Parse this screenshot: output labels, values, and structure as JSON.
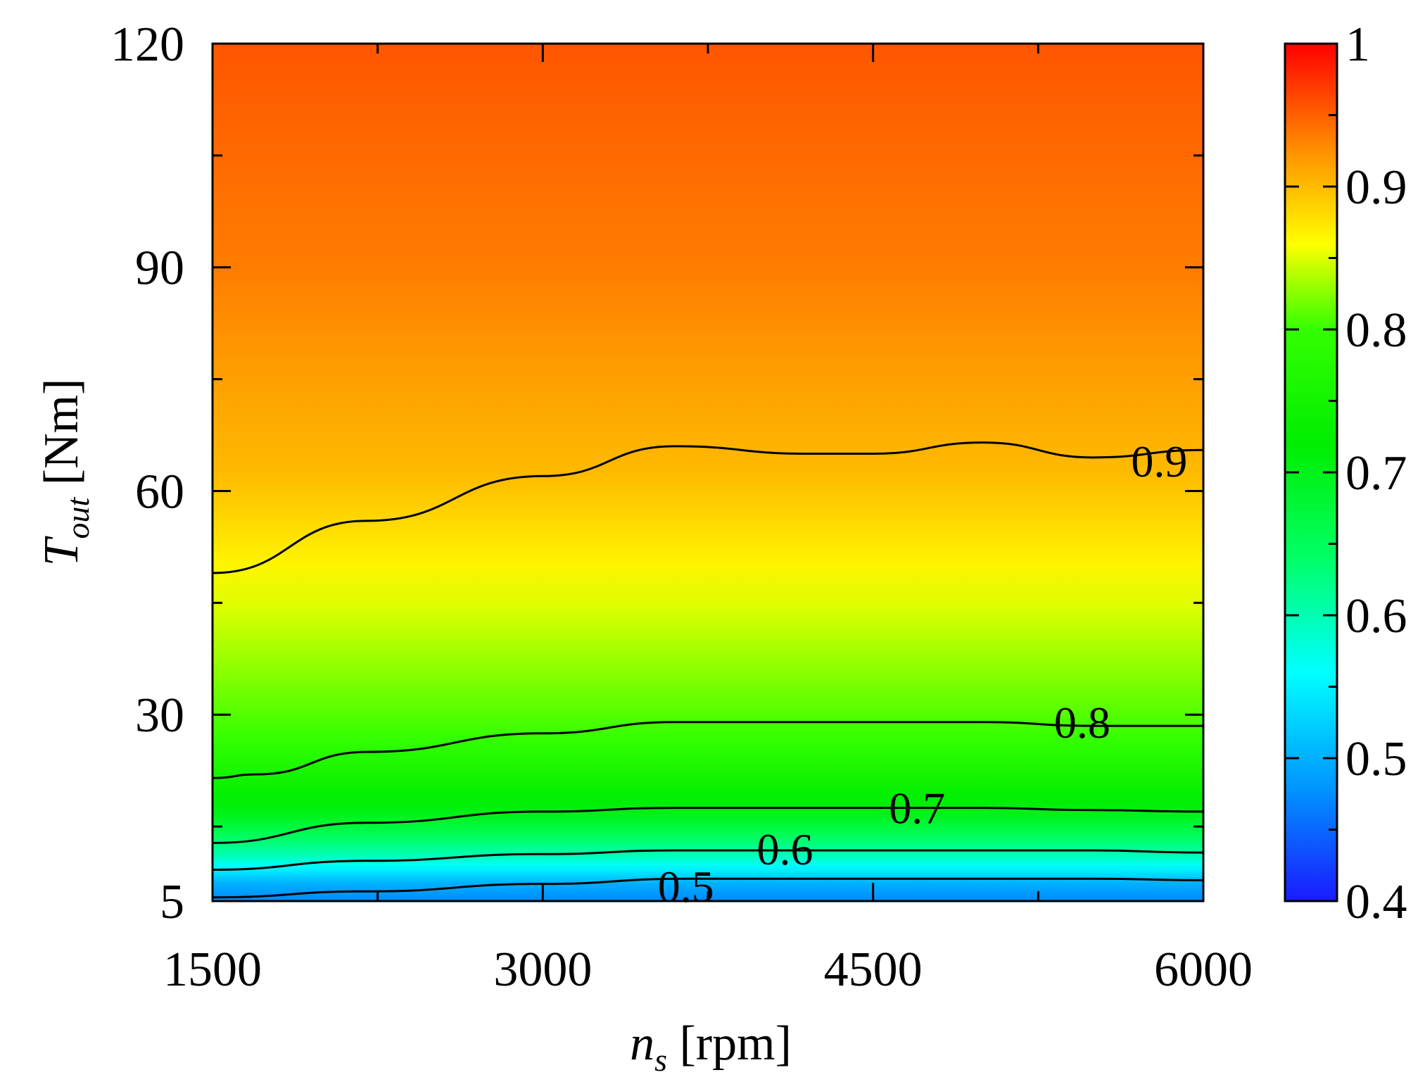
{
  "chart_data": {
    "type": "heatmap",
    "title": "",
    "x_axis": {
      "label_symbol": "n",
      "label_subscript": "s",
      "label_unit": " [rpm]",
      "range": [
        1500,
        6000
      ],
      "ticks": [
        1500,
        3000,
        4500,
        6000
      ],
      "tick_labels": [
        "1500",
        "3000",
        "4500",
        "6000"
      ],
      "minor_ticks": [
        2250,
        3750,
        5250
      ]
    },
    "y_axis": {
      "label_symbol": "T",
      "label_subscript": "out",
      "label_unit": " [Nm]",
      "range": [
        5,
        120
      ],
      "ticks": [
        5,
        30,
        60,
        90,
        120
      ],
      "tick_labels": [
        "5",
        "30",
        "60",
        "90",
        "120"
      ],
      "minor_ticks": [
        15,
        45,
        75,
        105
      ]
    },
    "colorbar": {
      "range": [
        0.4,
        1.0
      ],
      "ticks": [
        0.4,
        0.5,
        0.6,
        0.7,
        0.8,
        0.9,
        1.0
      ],
      "tick_labels": [
        "0.4",
        "0.5",
        "0.6",
        "0.7",
        "0.8",
        "0.9",
        "1"
      ],
      "minor_ticks": [
        0.45,
        0.55,
        0.65,
        0.75,
        0.85,
        0.95
      ],
      "colormap": [
        {
          "v": 0.4,
          "color": "#1a1aff"
        },
        {
          "v": 0.48,
          "color": "#0096ff"
        },
        {
          "v": 0.56,
          "color": "#00ffff"
        },
        {
          "v": 0.64,
          "color": "#00ff66"
        },
        {
          "v": 0.72,
          "color": "#00ee00"
        },
        {
          "v": 0.8,
          "color": "#33ff00"
        },
        {
          "v": 0.86,
          "color": "#ffff00"
        },
        {
          "v": 0.92,
          "color": "#ff9900"
        },
        {
          "v": 1.0,
          "color": "#ff0000"
        }
      ]
    },
    "contours": [
      {
        "level": 0.5,
        "label": "0.5",
        "label_at": [
          3650,
          7
        ],
        "points": [
          [
            1500,
            5.5
          ],
          [
            2200,
            6.3
          ],
          [
            3000,
            7.3
          ],
          [
            3650,
            8.0
          ],
          [
            4500,
            8.0
          ],
          [
            5000,
            8.0
          ],
          [
            5500,
            8.0
          ],
          [
            6000,
            7.8
          ]
        ]
      },
      {
        "level": 0.6,
        "label": "0.6",
        "label_at": [
          4100,
          12
        ],
        "points": [
          [
            1500,
            9.2
          ],
          [
            2200,
            10.4
          ],
          [
            3000,
            11.3
          ],
          [
            3600,
            11.8
          ],
          [
            4500,
            11.8
          ],
          [
            5000,
            11.8
          ],
          [
            5500,
            11.8
          ],
          [
            6000,
            11.5
          ]
        ]
      },
      {
        "level": 0.7,
        "label": "0.7",
        "label_at": [
          4700,
          17.5
        ],
        "points": [
          [
            1500,
            12.8
          ],
          [
            2200,
            15.5
          ],
          [
            3000,
            17.0
          ],
          [
            3600,
            17.5
          ],
          [
            4200,
            17.5
          ],
          [
            5000,
            17.5
          ],
          [
            5500,
            17.2
          ],
          [
            6000,
            17.0
          ]
        ]
      },
      {
        "level": 0.8,
        "label": "0.8",
        "label_at": [
          5450,
          29
        ],
        "points": [
          [
            1500,
            21.5
          ],
          [
            1700,
            22.0
          ],
          [
            2200,
            25.0
          ],
          [
            3000,
            27.5
          ],
          [
            3600,
            29.0
          ],
          [
            4200,
            29.0
          ],
          [
            5000,
            29.0
          ],
          [
            5500,
            28.5
          ],
          [
            6000,
            28.5
          ]
        ]
      },
      {
        "level": 0.9,
        "label": "0.9",
        "label_at": [
          5800,
          64
        ],
        "points": [
          [
            1500,
            49
          ],
          [
            2200,
            56
          ],
          [
            3000,
            62
          ],
          [
            3600,
            66
          ],
          [
            4200,
            65
          ],
          [
            4500,
            65
          ],
          [
            5000,
            66.5
          ],
          [
            5500,
            64.5
          ],
          [
            6000,
            65.5
          ]
        ]
      }
    ]
  }
}
